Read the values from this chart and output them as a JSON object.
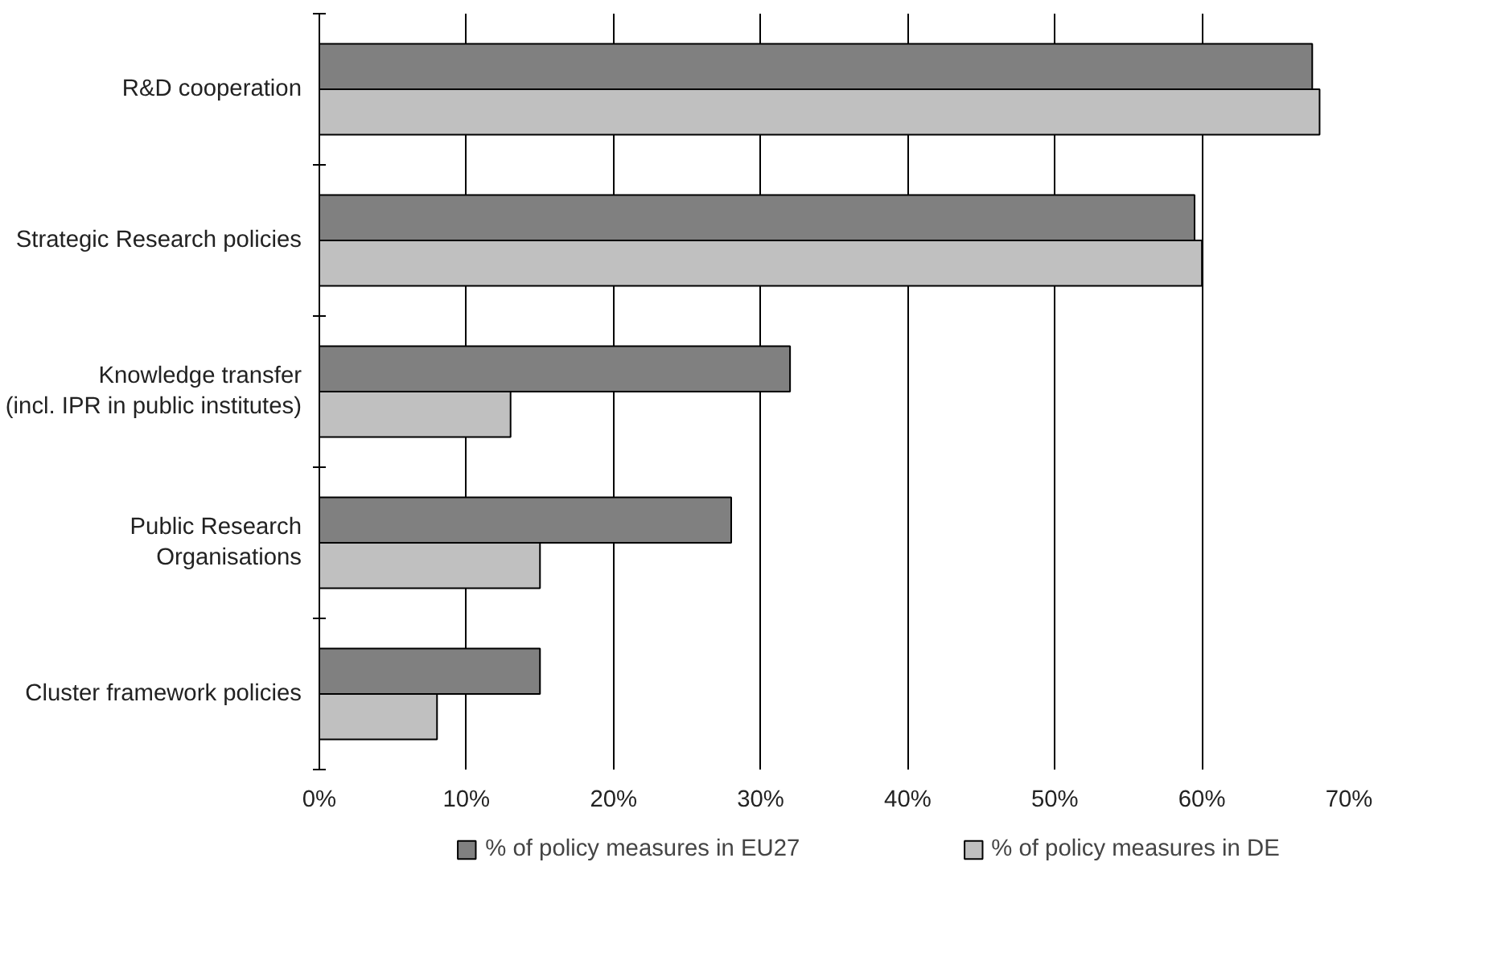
{
  "chart_data": {
    "type": "bar",
    "orientation": "horizontal",
    "categories": [
      "R&D cooperation",
      "Strategic Research policies",
      "Knowledge transfer\n(incl. IPR in public institutes)",
      "Public Research\nOrganisations",
      "Cluster framework policies"
    ],
    "series": [
      {
        "name": "% of policy measures in EU27",
        "color": "#808080",
        "values": [
          67.5,
          59.5,
          32,
          28,
          15
        ]
      },
      {
        "name": "% of policy measures in DE",
        "color": "#c0c0c0",
        "values": [
          68,
          60,
          13,
          15,
          8
        ]
      }
    ],
    "xlim": [
      0,
      70
    ],
    "xticks": [
      {
        "value": 0,
        "label": "0%"
      },
      {
        "value": 10,
        "label": "10%"
      },
      {
        "value": 20,
        "label": "20%"
      },
      {
        "value": 30,
        "label": "30%"
      },
      {
        "value": 40,
        "label": "40%"
      },
      {
        "value": 50,
        "label": "50%"
      },
      {
        "value": 60,
        "label": "60%"
      },
      {
        "value": 70,
        "label": "70%"
      }
    ],
    "grid": "x",
    "legend": "bottom"
  }
}
